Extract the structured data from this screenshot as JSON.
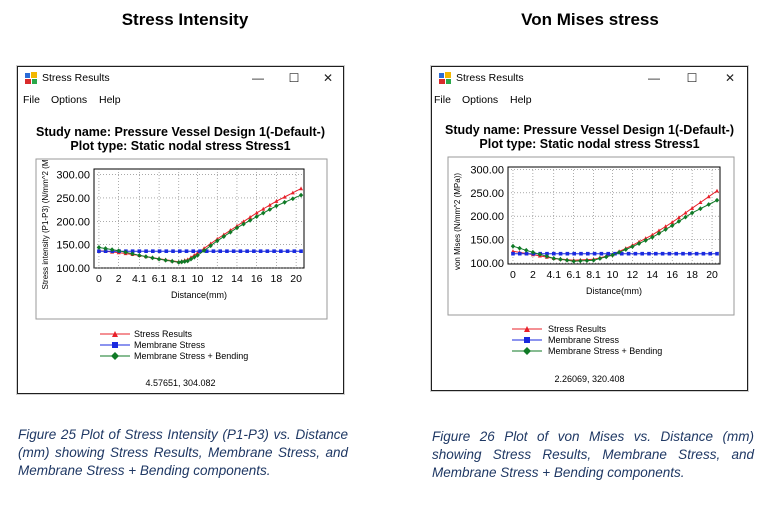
{
  "headings": {
    "left": "Stress Intensity",
    "right": "Von Mises stress"
  },
  "windows": [
    {
      "title": "Stress Results",
      "controls": {
        "minimize": "—",
        "maximize": "☐",
        "close": "✕"
      },
      "menu": [
        "File",
        "Options",
        "Help"
      ],
      "study_title": "Study name: Pressure Vessel Design 1(-Default-)",
      "plot_type": "Plot type: Static nodal stress Stress1",
      "legend": [
        "Stress Results",
        "Membrane Stress",
        "Membrane Stress + Bending"
      ],
      "coordinate_readout": "4.57651, 304.082"
    },
    {
      "title": "Stress Results",
      "controls": {
        "minimize": "—",
        "maximize": "☐",
        "close": "✕"
      },
      "menu": [
        "File",
        "Options",
        "Help"
      ],
      "study_title": "Study name: Pressure Vessel Design 1(-Default-)",
      "plot_type": "Plot type: Static nodal stress Stress1",
      "legend": [
        "Stress Results",
        "Membrane Stress",
        "Membrane Stress + Bending"
      ],
      "coordinate_readout": "2.26069, 320.408"
    }
  ],
  "chart_data": [
    {
      "type": "line",
      "ylabel": "Stress intensity (P1-P3) (N/mm^2 (M",
      "xlabel": "Distance(mm)",
      "x_ticks": [
        "0",
        "2",
        "4.1",
        "6.1",
        "8.1",
        "10",
        "12",
        "14",
        "16",
        "18",
        "20"
      ],
      "y_ticks": [
        "100.00",
        "150.00",
        "200.00",
        "250.00",
        "300.00"
      ],
      "xlim": [
        -0.5,
        20.8
      ],
      "ylim": [
        100,
        312
      ],
      "grid": true,
      "series": [
        {
          "name": "Stress Results",
          "color": "#e8202a",
          "marker": "triangle",
          "x": [
            0,
            2,
            4.1,
            6.1,
            8.1,
            9,
            10,
            12,
            14,
            16,
            18,
            20.5
          ],
          "y": [
            137,
            133,
            127,
            120,
            113,
            118,
            132,
            162,
            190,
            218,
            243,
            270
          ]
        },
        {
          "name": "Membrane Stress",
          "color": "#1a2adf",
          "marker": "square",
          "x": [
            0,
            20.5
          ],
          "y": [
            136,
            136
          ]
        },
        {
          "name": "Membrane Stress + Bending",
          "color": "#0f7a26",
          "marker": "diamond",
          "x": [
            0,
            2,
            4.1,
            6.1,
            8.1,
            9,
            10,
            12,
            14,
            16,
            18,
            20.5
          ],
          "y": [
            144,
            137,
            127,
            119,
            112,
            115,
            127,
            158,
            186,
            210,
            233,
            256
          ]
        }
      ]
    },
    {
      "type": "line",
      "ylabel": "von Mises (N/mm^2 (MPa))",
      "xlabel": "Distance(mm)",
      "x_ticks": [
        "0",
        "2",
        "4.1",
        "6.1",
        "8.1",
        "10",
        "12",
        "14",
        "16",
        "18",
        "20"
      ],
      "y_ticks": [
        "100.00",
        "150.00",
        "200.00",
        "250.00",
        "300.00"
      ],
      "xlim": [
        -0.5,
        20.8
      ],
      "ylim": [
        98,
        305
      ],
      "grid": true,
      "series": [
        {
          "name": "Stress Results",
          "color": "#e8202a",
          "marker": "triangle",
          "x": [
            0,
            2,
            4.1,
            6.1,
            8.1,
            10,
            12,
            14,
            16,
            18,
            20.5
          ],
          "y": [
            125,
            118,
            110,
            106,
            108,
            118,
            138,
            160,
            187,
            217,
            254
          ]
        },
        {
          "name": "Membrane Stress",
          "color": "#1a2adf",
          "marker": "square",
          "x": [
            0,
            20.5
          ],
          "y": [
            120,
            120
          ]
        },
        {
          "name": "Membrane Stress + Bending",
          "color": "#0f7a26",
          "marker": "diamond",
          "x": [
            0,
            2,
            4.1,
            6.1,
            8.1,
            10,
            12,
            14,
            16,
            18,
            20.5
          ],
          "y": [
            136,
            123,
            110,
            104,
            106,
            117,
            135,
            155,
            180,
            207,
            234
          ]
        }
      ]
    }
  ],
  "captions": {
    "left": "Figure 25 Plot of Stress Intensity (P1-P3) vs. Distance (mm) showing Stress Results, Membrane Stress, and Membrane Stress + Bending components.",
    "right": "Figure 26 Plot of von Mises vs. Distance (mm) showing Stress Results, Membrane Stress, and Membrane Stress + Bending components."
  }
}
